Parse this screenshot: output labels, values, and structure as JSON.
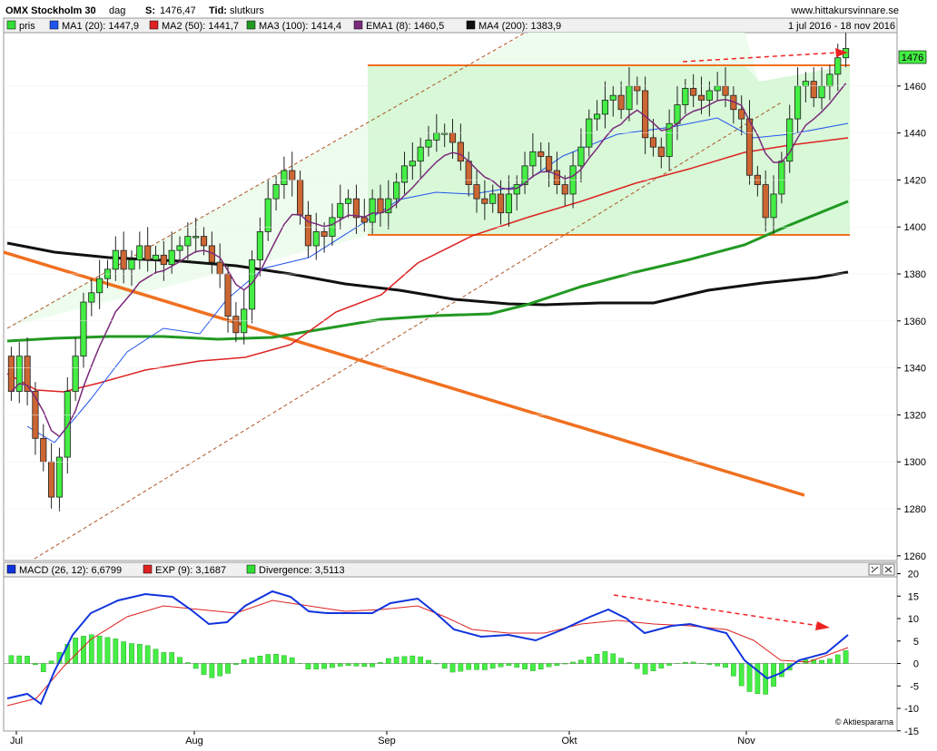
{
  "header": {
    "instrument": "OMX Stockholm 30",
    "period": "dag",
    "last_label": "S:",
    "last_value": "1476,47",
    "type_label": "Tid:",
    "type_value": "slutkurs",
    "source": "www.hittakursvinnare.se",
    "date_range": "1 jul 2016 - 18 nov 2016"
  },
  "legend_price": [
    {
      "label": "pris",
      "color": "#33dd33"
    },
    {
      "label": "MA1 (20): 1447,9",
      "color": "#2255ee"
    },
    {
      "label": "MA2 (50): 1441,7",
      "color": "#dd2222"
    },
    {
      "label": "MA3 (100): 1414,4",
      "color": "#229922"
    },
    {
      "label": "EMA1 (8): 1460,5",
      "color": "#7a2a7a"
    },
    {
      "label": "MA4 (200): 1383,9",
      "color": "#111111"
    }
  ],
  "legend_macd": [
    {
      "label": "MACD (26, 12): 6,6799",
      "color": "#1133dd"
    },
    {
      "label": "EXP (9): 3,1687",
      "color": "#dd2222"
    },
    {
      "label": "Divergence: 3,5113",
      "color": "#33dd33"
    }
  ],
  "last_price_badge": "1476",
  "copyright": "© Aktiespararna",
  "colors": {
    "up": "#44ee44",
    "down": "#cc6633",
    "trend": "#f07020",
    "channel_fill": "#ddfadd"
  },
  "chart_data": {
    "type": "candlestick",
    "x_tick_labels": [
      "Jul",
      "Aug",
      "Sep",
      "Okt",
      "Nov"
    ],
    "price_y_ticks": [
      1260,
      1280,
      1300,
      1320,
      1340,
      1360,
      1380,
      1400,
      1420,
      1440,
      1460
    ],
    "macd_y_ticks": [
      20,
      15,
      10,
      5,
      0,
      -5,
      -10,
      -15
    ],
    "price_ylim": [
      1258,
      1481
    ],
    "macd_ylim": [
      -15,
      20
    ],
    "closes": [
      1330,
      1345,
      1330,
      1310,
      1300,
      1285,
      1302,
      1330,
      1345,
      1368,
      1372,
      1378,
      1382,
      1390,
      1382,
      1386,
      1392,
      1386,
      1388,
      1384,
      1390,
      1392,
      1396,
      1396,
      1392,
      1385,
      1380,
      1362,
      1355,
      1365,
      1386,
      1398,
      1412,
      1418,
      1424,
      1420,
      1405,
      1392,
      1398,
      1396,
      1404,
      1410,
      1412,
      1404,
      1402,
      1412,
      1406,
      1412,
      1419,
      1426,
      1428,
      1434,
      1437,
      1440,
      1440,
      1436,
      1428,
      1418,
      1412,
      1410,
      1414,
      1406,
      1414,
      1418,
      1426,
      1432,
      1430,
      1424,
      1418,
      1414,
      1426,
      1434,
      1446,
      1448,
      1454,
      1456,
      1450,
      1460,
      1458,
      1438,
      1434,
      1430,
      1444,
      1452,
      1459,
      1456,
      1454,
      1458,
      1460,
      1456,
      1450,
      1446,
      1422,
      1418,
      1404,
      1414,
      1428,
      1446,
      1460,
      1462,
      1455,
      1460,
      1465,
      1472,
      1476
    ],
    "series": [
      {
        "name": "MA1 (20)",
        "last": 1447.9
      },
      {
        "name": "MA2 (50)",
        "last": 1441.7
      },
      {
        "name": "MA3 (100)",
        "last": 1414.4
      },
      {
        "name": "EMA1 (8)",
        "last": 1460.5
      },
      {
        "name": "MA4 (200)",
        "last": 1383.9
      },
      {
        "name": "MACD (26, 12)",
        "last": 6.6799
      },
      {
        "name": "EXP (9)",
        "last": 3.1687
      },
      {
        "name": "Divergence",
        "last": 3.5113
      }
    ],
    "horizontal_levels": [
      1474,
      1400
    ]
  }
}
